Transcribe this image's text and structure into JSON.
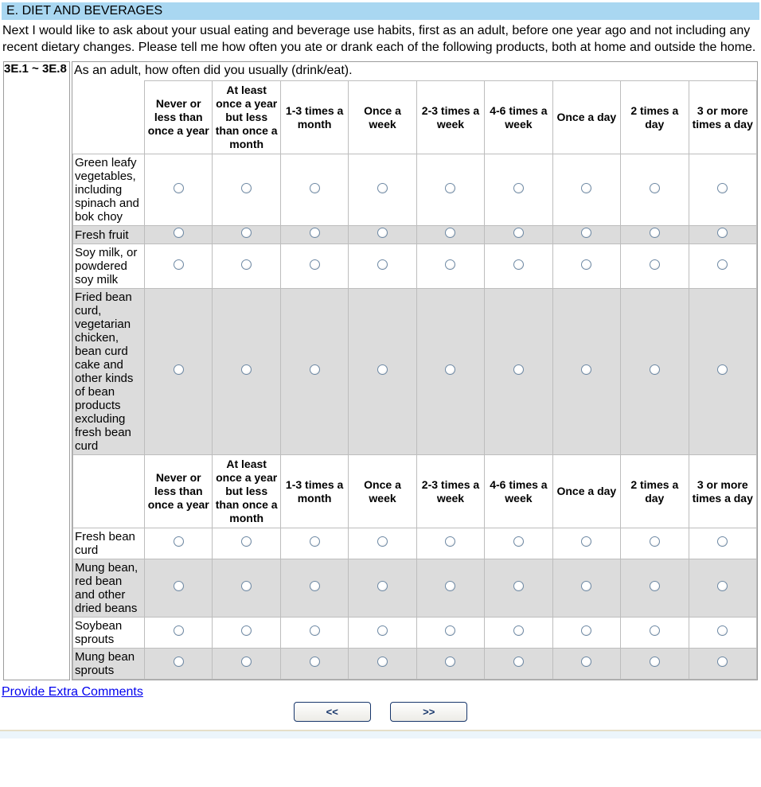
{
  "header": {
    "title": "E. DIET AND BEVERAGES"
  },
  "intro_text": "Next I would like to ask about your usual eating and beverage use habits, first as an adult, before one year ago and not including any recent dietary changes. Please tell me how often you ate or drank each of the following products, both at home and outside the home.",
  "question": {
    "id_range": "3E.1 ~ 3E.8",
    "prompt": "As an adult, how often did you usually (drink/eat)."
  },
  "survey_table": {
    "column_headers": [
      "Never or less than once a year",
      "At least once a year but less than once a month",
      "1-3 times a month",
      "Once a week",
      "2-3 times a week",
      "4-6 times a week",
      "Once a day",
      "2 times a day",
      "3 or more times a day"
    ],
    "sections": [
      {
        "items": [
          {
            "label": "Green leafy vegetables, including spinach and bok choy",
            "shaded": false
          },
          {
            "label": "Fresh fruit",
            "shaded": true
          },
          {
            "label": "Soy milk, or powdered soy milk",
            "shaded": false
          },
          {
            "label": "Fried bean curd, vegetarian chicken, bean curd cake and other kinds of bean products excluding fresh bean curd",
            "shaded": true
          }
        ]
      },
      {
        "items": [
          {
            "label": "Fresh bean curd",
            "shaded": false
          },
          {
            "label": "Mung bean, red bean and other dried beans",
            "shaded": true
          },
          {
            "label": "Soybean sprouts",
            "shaded": false
          },
          {
            "label": "Mung bean sprouts",
            "shaded": true
          }
        ]
      }
    ]
  },
  "footer": {
    "comments_link_label": "Provide Extra Comments",
    "back_button_label": "<<",
    "forward_button_label": ">>"
  },
  "colors": {
    "title_bar_bg": "#A9D7F1",
    "shaded_row_bg": "#DCDCDC",
    "grid_border": "#BDBDBD",
    "outer_border": "#9C9C9C",
    "link_color": "#0000EE",
    "button_color": "#17366B",
    "radio_border": "#6E89A4",
    "bottom_strip_bg": "#ECF5FB",
    "bottom_strip_line": "#E6DFC8"
  }
}
